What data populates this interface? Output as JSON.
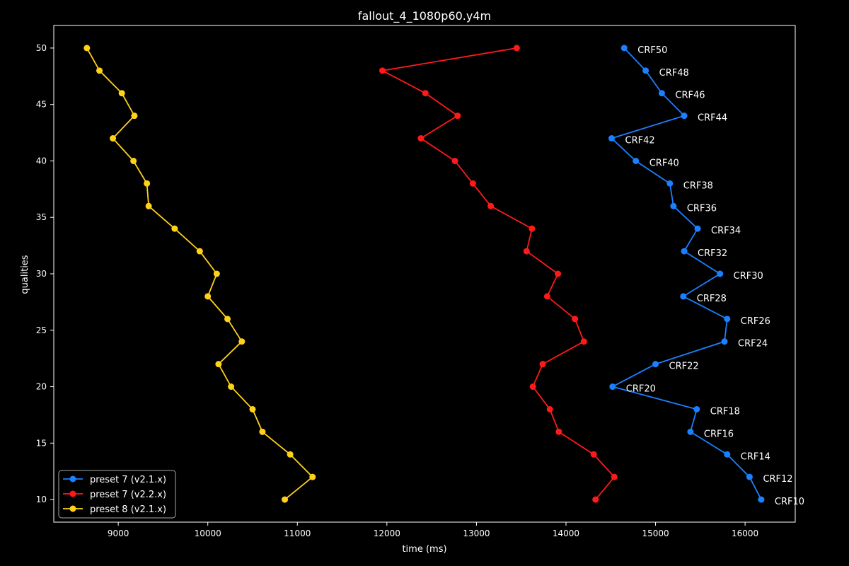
{
  "chart_data": {
    "type": "line",
    "title": "fallout_4_1080p60.y4m",
    "xlabel": "time (ms)",
    "ylabel": "qualities",
    "xlim": [
      8280,
      16560
    ],
    "ylim": [
      8,
      52
    ],
    "xticks": [
      9000,
      10000,
      11000,
      12000,
      13000,
      14000,
      15000,
      16000
    ],
    "yticks": [
      10,
      15,
      20,
      25,
      30,
      35,
      40,
      45,
      50
    ],
    "grid": false,
    "legend_position": "lower-left",
    "series": [
      {
        "name": "preset 7 (v2.1.x)",
        "color": "#1a80ff",
        "y": [
          50,
          48,
          46,
          44,
          42,
          40,
          38,
          36,
          34,
          32,
          30,
          28,
          26,
          24,
          22,
          20,
          18,
          16,
          14,
          12,
          10
        ],
        "x": [
          14650,
          14890,
          15070,
          15320,
          14510,
          14780,
          15160,
          15200,
          15470,
          15320,
          15720,
          15310,
          15800,
          15770,
          15000,
          14520,
          15460,
          15390,
          15800,
          16050,
          16180
        ]
      },
      {
        "name": "preset 7 (v2.2.x)",
        "color": "#ff1a1a",
        "y": [
          50,
          48,
          46,
          44,
          42,
          40,
          38,
          36,
          34,
          32,
          30,
          28,
          26,
          24,
          22,
          20,
          18,
          16,
          14,
          12,
          10
        ],
        "x": [
          13450,
          11950,
          12430,
          12790,
          12380,
          12760,
          12960,
          13160,
          13620,
          13560,
          13910,
          13790,
          14100,
          14200,
          13740,
          13630,
          13820,
          13920,
          14310,
          14540,
          14330
        ]
      },
      {
        "name": "preset 8 (v2.1.x)",
        "color": "#ffd21a",
        "y": [
          50,
          48,
          46,
          44,
          42,
          40,
          38,
          36,
          34,
          32,
          30,
          28,
          26,
          24,
          22,
          20,
          18,
          16,
          14,
          12,
          10
        ],
        "x": [
          8650,
          8790,
          9040,
          9180,
          8940,
          9170,
          9320,
          9340,
          9630,
          9910,
          10100,
          10000,
          10220,
          10380,
          10120,
          10260,
          10500,
          10610,
          10920,
          11170,
          10860
        ]
      }
    ],
    "annotations": [
      {
        "text": "CRF50",
        "x": 14650,
        "y": 50
      },
      {
        "text": "CRF48",
        "x": 14890,
        "y": 48
      },
      {
        "text": "CRF46",
        "x": 15070,
        "y": 46
      },
      {
        "text": "CRF44",
        "x": 15320,
        "y": 44
      },
      {
        "text": "CRF42",
        "x": 14510,
        "y": 42
      },
      {
        "text": "CRF40",
        "x": 14780,
        "y": 40
      },
      {
        "text": "CRF38",
        "x": 15160,
        "y": 38
      },
      {
        "text": "CRF36",
        "x": 15200,
        "y": 36
      },
      {
        "text": "CRF34",
        "x": 15470,
        "y": 34
      },
      {
        "text": "CRF32",
        "x": 15320,
        "y": 32
      },
      {
        "text": "CRF30",
        "x": 15720,
        "y": 30
      },
      {
        "text": "CRF28",
        "x": 15310,
        "y": 28
      },
      {
        "text": "CRF26",
        "x": 15800,
        "y": 26
      },
      {
        "text": "CRF24",
        "x": 15770,
        "y": 24
      },
      {
        "text": "CRF22",
        "x": 15000,
        "y": 22
      },
      {
        "text": "CRF20",
        "x": 14520,
        "y": 20
      },
      {
        "text": "CRF18",
        "x": 15460,
        "y": 18
      },
      {
        "text": "CRF16",
        "x": 15390,
        "y": 16
      },
      {
        "text": "CRF14",
        "x": 15800,
        "y": 14
      },
      {
        "text": "CRF12",
        "x": 16050,
        "y": 12
      },
      {
        "text": "CRF10",
        "x": 16180,
        "y": 10
      }
    ]
  }
}
